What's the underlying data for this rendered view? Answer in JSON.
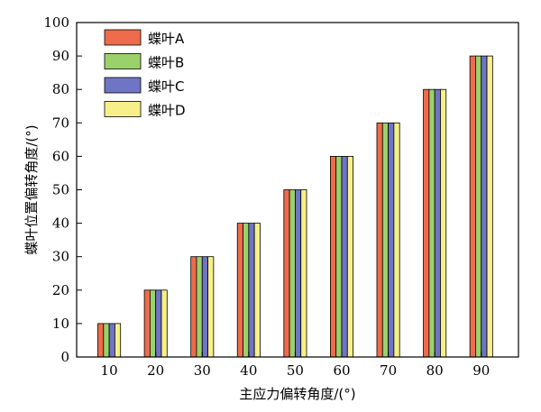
{
  "chart_data": {
    "type": "bar",
    "xlabel": "主应力偏转角度/(°)",
    "ylabel": "蝶叶位置偏转角度/(°)",
    "categories": [
      "10",
      "20",
      "30",
      "40",
      "50",
      "60",
      "70",
      "80",
      "90"
    ],
    "ylim": [
      0,
      100
    ],
    "yticks": [
      0,
      10,
      20,
      30,
      40,
      50,
      60,
      70,
      80,
      90,
      100
    ],
    "legend_position": "top-left",
    "grid": false,
    "series": [
      {
        "name": "蝶叶A",
        "color": "#ee6b4b",
        "values": [
          10,
          20,
          30,
          40,
          50,
          60,
          70,
          80,
          90
        ]
      },
      {
        "name": "蝶叶B",
        "color": "#9bd16a",
        "values": [
          10,
          20,
          30,
          40,
          50,
          60,
          70,
          80,
          90
        ]
      },
      {
        "name": "蝶叶C",
        "color": "#6f74c4",
        "values": [
          10,
          20,
          30,
          40,
          50,
          60,
          70,
          80,
          90
        ]
      },
      {
        "name": "蝶叶D",
        "color": "#f7f08a",
        "values": [
          10,
          20,
          30,
          40,
          50,
          60,
          70,
          80,
          90
        ]
      }
    ]
  }
}
